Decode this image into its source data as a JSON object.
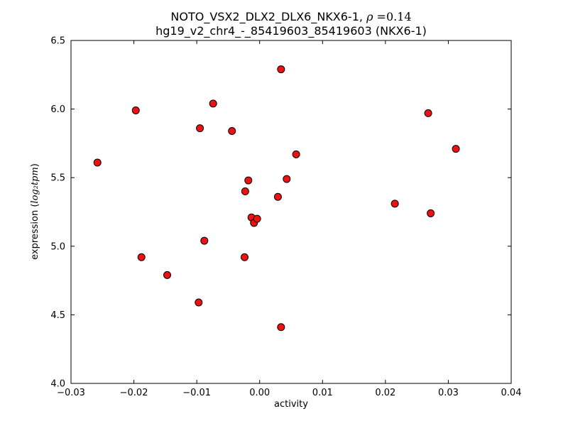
{
  "figure": {
    "background": "#ffffff",
    "title_line1": {
      "prefix": "NOTO_VSX2_DLX2_DLX6_NKX6-1, ",
      "rho": "ρ",
      "suffix": " =0.14"
    },
    "title_line2": "hg19_v2_chr4_-_85419603_85419603 (NKX6-1)",
    "xlabel": "activity",
    "ylabel": {
      "prefix": "expression (",
      "math": "log₂tpm",
      "suffix": ")"
    }
  },
  "chart_data": {
    "type": "scatter",
    "title": "NOTO_VSX2_DLX2_DLX6_NKX6-1, ρ =0.14\nhg19_v2_chr4_-_85419603_85419603 (NKX6-1)",
    "xlabel": "activity",
    "ylabel": "expression (log2 tpm)",
    "xlim": [
      -0.03,
      0.04
    ],
    "ylim": [
      4.0,
      6.5
    ],
    "xticks": [
      -0.03,
      -0.02,
      -0.01,
      0.0,
      0.01,
      0.02,
      0.03,
      0.04
    ],
    "xtick_labels": [
      "−0.03",
      "−0.02",
      "−0.01",
      "0.00",
      "0.01",
      "0.02",
      "0.03",
      "0.04"
    ],
    "yticks": [
      4.0,
      4.5,
      5.0,
      5.5,
      6.0,
      6.5
    ],
    "ytick_labels": [
      "4.0",
      "4.5",
      "5.0",
      "5.5",
      "6.0",
      "6.5"
    ],
    "grid": false,
    "legend": null,
    "marker": {
      "shape": "circle",
      "fill": "#ee1111",
      "edge": "#000000",
      "radius": 5
    },
    "points": [
      {
        "x": -0.0258,
        "y": 5.61
      },
      {
        "x": -0.0197,
        "y": 5.99
      },
      {
        "x": -0.0188,
        "y": 4.92
      },
      {
        "x": -0.0147,
        "y": 4.79
      },
      {
        "x": -0.0095,
        "y": 5.86
      },
      {
        "x": -0.0097,
        "y": 4.59
      },
      {
        "x": -0.0088,
        "y": 5.04
      },
      {
        "x": -0.0074,
        "y": 6.04
      },
      {
        "x": -0.0044,
        "y": 5.84
      },
      {
        "x": -0.0023,
        "y": 5.4
      },
      {
        "x": -0.0024,
        "y": 4.92
      },
      {
        "x": -0.0018,
        "y": 5.48
      },
      {
        "x": -0.0013,
        "y": 5.21
      },
      {
        "x": -0.0009,
        "y": 5.17
      },
      {
        "x": -0.0004,
        "y": 5.2
      },
      {
        "x": 0.0029,
        "y": 5.36
      },
      {
        "x": 0.0034,
        "y": 6.29
      },
      {
        "x": 0.0034,
        "y": 4.41
      },
      {
        "x": 0.0043,
        "y": 5.49
      },
      {
        "x": 0.0058,
        "y": 5.67
      },
      {
        "x": 0.0215,
        "y": 5.31
      },
      {
        "x": 0.0268,
        "y": 5.97
      },
      {
        "x": 0.0272,
        "y": 5.24
      },
      {
        "x": 0.0312,
        "y": 5.71
      }
    ]
  }
}
